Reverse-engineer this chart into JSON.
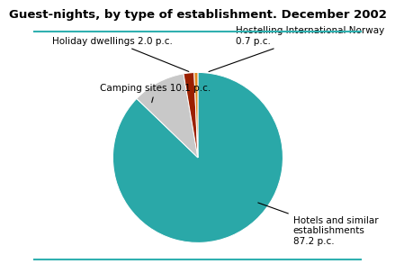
{
  "title": "Guest-nights, by type of establishment. December 2002",
  "slices": [
    {
      "label": "Hotels and similar\nestablishments\n87.2 p.c.",
      "value": 87.2,
      "color": "#2aa8a8"
    },
    {
      "label": "Camping sites 10.1 p.c.",
      "value": 10.1,
      "color": "#c8c8c8"
    },
    {
      "label": "Holiday dwellings 2.0 p.c.",
      "value": 2.0,
      "color": "#9b2000"
    },
    {
      "label": "Hostelling International Norway\n0.7 p.c.",
      "value": 0.7,
      "color": "#e08820"
    }
  ],
  "title_fontsize": 9.5,
  "label_fontsize": 7.5,
  "background_color": "#ffffff",
  "title_color": "#000000",
  "border_color": "#30b0b0",
  "startangle": 90
}
